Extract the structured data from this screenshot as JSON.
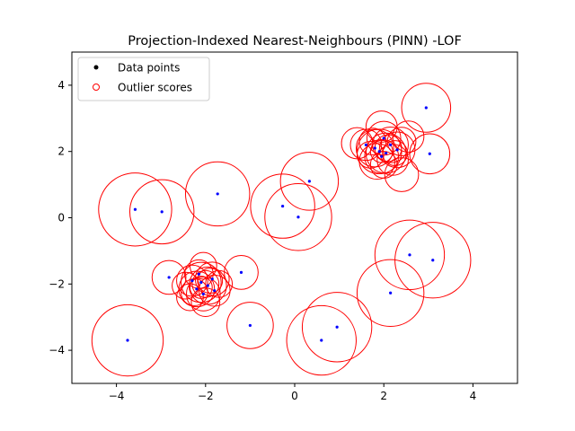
{
  "chart_data": {
    "type": "scatter",
    "title": "Projection-Indexed Nearest-Neighbours (PINN) -LOF",
    "xlabel": "",
    "ylabel": "",
    "xlim": [
      -5,
      5
    ],
    "ylim": [
      -5,
      5
    ],
    "xticks": [
      -4,
      -2,
      0,
      2,
      4
    ],
    "yticks": [
      -4,
      -2,
      0,
      2,
      4
    ],
    "grid": false,
    "legend": {
      "placement": "top-left",
      "entries": [
        "Data points",
        "Outlier scores"
      ]
    },
    "colors": {
      "points": "#0000ff",
      "legend_point": "#000000",
      "circles": "#ff0000",
      "axes": "#000000"
    },
    "series": [
      {
        "name": "Data points",
        "marker": "dot",
        "points": [
          [
            2.95,
            3.32
          ],
          [
            3.03,
            1.93
          ],
          [
            0.33,
            1.1
          ],
          [
            -0.27,
            0.35
          ],
          [
            0.08,
            0.02
          ],
          [
            -1.73,
            0.72
          ],
          [
            -3.58,
            0.25
          ],
          [
            -2.98,
            0.18
          ],
          [
            2.58,
            -1.12
          ],
          [
            3.1,
            -1.28
          ],
          [
            2.15,
            -2.27
          ],
          [
            -1.0,
            -3.25
          ],
          [
            0.95,
            -3.3
          ],
          [
            0.6,
            -3.7
          ],
          [
            -3.75,
            -3.7
          ],
          [
            -1.2,
            -1.65
          ],
          [
            -2.82,
            -1.8
          ],
          [
            1.9,
            2.0
          ],
          [
            2.05,
            1.95
          ],
          [
            1.8,
            2.1
          ],
          [
            2.15,
            2.2
          ],
          [
            1.95,
            1.85
          ],
          [
            2.3,
            2.05
          ],
          [
            1.6,
            2.2
          ],
          [
            2.0,
            2.4
          ],
          [
            -2.1,
            -1.95
          ],
          [
            -1.95,
            -2.05
          ],
          [
            -2.2,
            -2.15
          ],
          [
            -1.85,
            -1.85
          ],
          [
            -2.05,
            -2.3
          ],
          [
            -2.3,
            -1.9
          ],
          [
            -1.8,
            -2.2
          ],
          [
            -2.15,
            -1.7
          ]
        ]
      },
      {
        "name": "Outlier scores",
        "marker": "circle",
        "circles": [
          [
            2.95,
            3.32,
            0.55
          ],
          [
            3.03,
            1.93,
            0.45
          ],
          [
            0.33,
            1.1,
            0.65
          ],
          [
            -0.27,
            0.35,
            0.72
          ],
          [
            0.08,
            0.02,
            0.75
          ],
          [
            -1.73,
            0.72,
            0.72
          ],
          [
            -3.58,
            0.25,
            0.82
          ],
          [
            -2.98,
            0.18,
            0.72
          ],
          [
            2.58,
            -1.12,
            0.78
          ],
          [
            3.1,
            -1.28,
            0.85
          ],
          [
            2.15,
            -2.27,
            0.75
          ],
          [
            -1.0,
            -3.25,
            0.52
          ],
          [
            0.95,
            -3.3,
            0.78
          ],
          [
            0.6,
            -3.7,
            0.78
          ],
          [
            -3.75,
            -3.7,
            0.8
          ],
          [
            -1.2,
            -1.65,
            0.38
          ],
          [
            -2.82,
            -1.8,
            0.38
          ],
          [
            1.4,
            2.25,
            0.35
          ],
          [
            2.4,
            1.3,
            0.38
          ],
          [
            1.95,
            2.75,
            0.35
          ],
          [
            2.55,
            2.45,
            0.35
          ],
          [
            1.9,
            2.0,
            0.5
          ],
          [
            2.05,
            1.95,
            0.45
          ],
          [
            1.8,
            2.1,
            0.42
          ],
          [
            2.15,
            2.2,
            0.4
          ],
          [
            1.95,
            1.85,
            0.38
          ],
          [
            2.3,
            2.05,
            0.4
          ],
          [
            1.6,
            2.2,
            0.35
          ],
          [
            2.0,
            2.4,
            0.38
          ],
          [
            1.85,
            1.7,
            0.4
          ],
          [
            2.2,
            1.75,
            0.35
          ],
          [
            1.7,
            1.9,
            0.3
          ],
          [
            2.1,
            2.1,
            0.3
          ],
          [
            1.95,
            2.0,
            0.25
          ],
          [
            2.25,
            1.95,
            0.28
          ],
          [
            1.75,
            2.3,
            0.3
          ],
          [
            2.4,
            2.3,
            0.32
          ],
          [
            2.0,
            1.6,
            0.3
          ],
          [
            -2.1,
            -1.95,
            0.45
          ],
          [
            -1.95,
            -2.05,
            0.42
          ],
          [
            -2.2,
            -2.15,
            0.4
          ],
          [
            -1.85,
            -1.85,
            0.38
          ],
          [
            -2.05,
            -2.3,
            0.38
          ],
          [
            -2.3,
            -1.9,
            0.35
          ],
          [
            -1.8,
            -2.2,
            0.35
          ],
          [
            -2.15,
            -1.7,
            0.32
          ],
          [
            -2.0,
            -2.55,
            0.32
          ],
          [
            -2.45,
            -2.05,
            0.3
          ],
          [
            -2.0,
            -2.0,
            0.3
          ],
          [
            -2.1,
            -2.1,
            0.25
          ],
          [
            -1.9,
            -1.9,
            0.28
          ],
          [
            -2.25,
            -2.25,
            0.3
          ],
          [
            -1.7,
            -2.0,
            0.3
          ],
          [
            -2.05,
            -1.45,
            0.3
          ],
          [
            -2.35,
            -2.4,
            0.3
          ]
        ]
      }
    ]
  }
}
